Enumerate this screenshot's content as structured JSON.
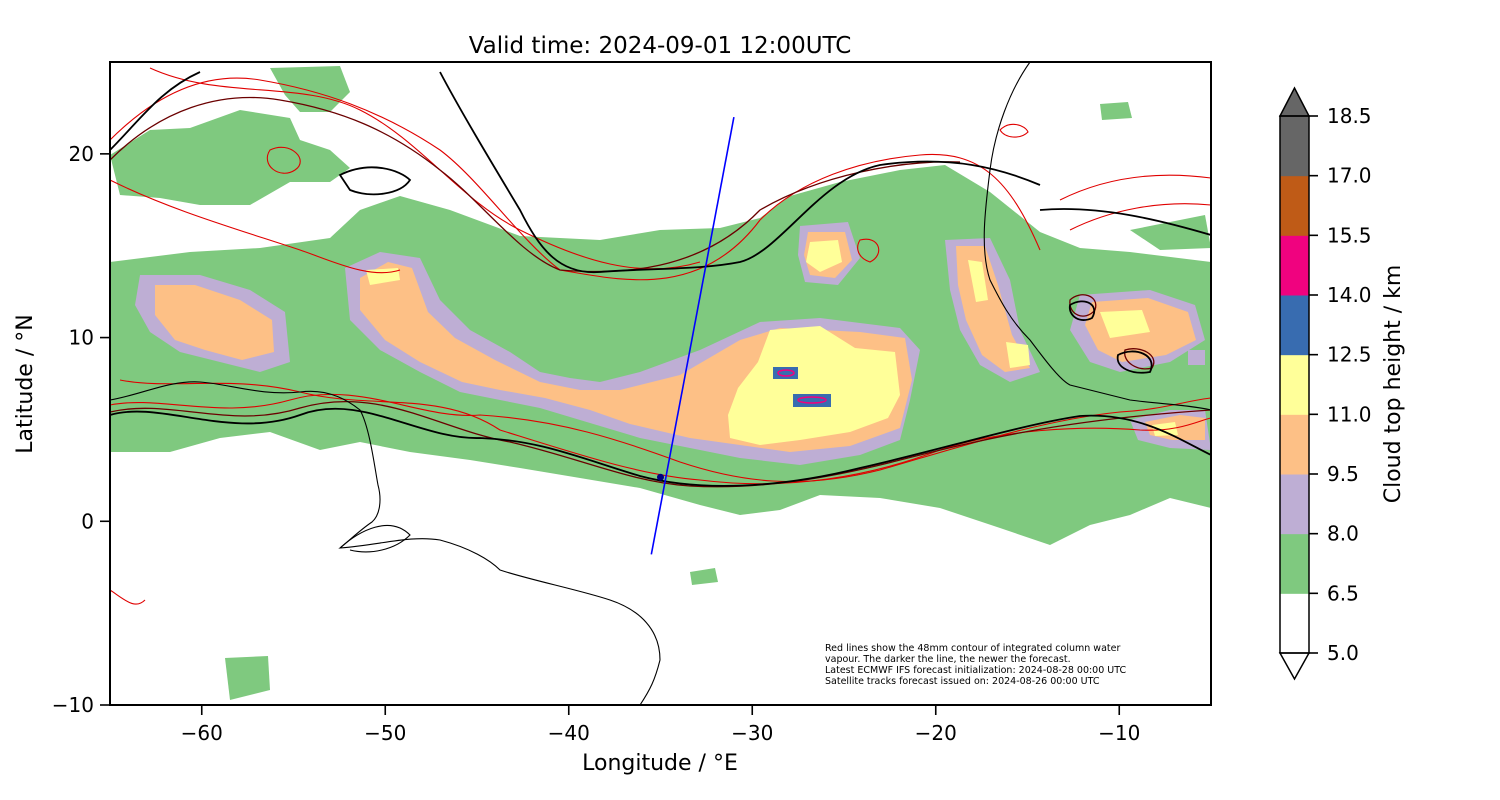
{
  "chart_data": {
    "type": "map",
    "title": "Valid time: 2024-09-01 12:00UTC",
    "xlabel": "Longitude / °E",
    "ylabel": "Latitude / °N",
    "xlim": [
      -65,
      -5
    ],
    "ylim": [
      -10,
      25
    ],
    "xticks": [
      -60,
      -50,
      -40,
      -30,
      -20,
      -10
    ],
    "yticks": [
      -10,
      0,
      10,
      20
    ],
    "xtick_labels": [
      "−60",
      "−50",
      "−40",
      "−30",
      "−20",
      "−10"
    ],
    "ytick_labels": [
      "−10",
      "0",
      "10",
      "20"
    ],
    "colorbar": {
      "label": "Cloud top height / km",
      "levels": [
        5.0,
        6.5,
        8.0,
        9.5,
        11.0,
        12.5,
        14.0,
        15.5,
        17.0,
        18.5
      ],
      "tick_labels": [
        "5.0",
        "6.5",
        "8.0",
        "9.5",
        "11.0",
        "12.5",
        "14.0",
        "15.5",
        "17.0",
        "18.5"
      ],
      "colors": [
        "#ffffff",
        "#7fc97f",
        "#beaed4",
        "#fdc086",
        "#ffff99",
        "#386cb0",
        "#f0027f",
        "#bf5b17",
        "#666666"
      ],
      "extend": "both"
    },
    "satellite_track": {
      "color": "#0000ff",
      "points": [
        [
          -35.5,
          -1.8
        ],
        [
          -31,
          22
        ]
      ],
      "marker": [
        -35,
        2.4
      ]
    },
    "annotation": [
      "Red lines show the 48mm contour of integrated column water",
      "vapour. The darker the line, the newer the forecast.",
      "Latest ECMWF IFS forecast initialization: 2024-08-28 00:00 UTC",
      "Satellite tracks forecast issued on: 2024-08-26 00:00 UTC"
    ]
  }
}
